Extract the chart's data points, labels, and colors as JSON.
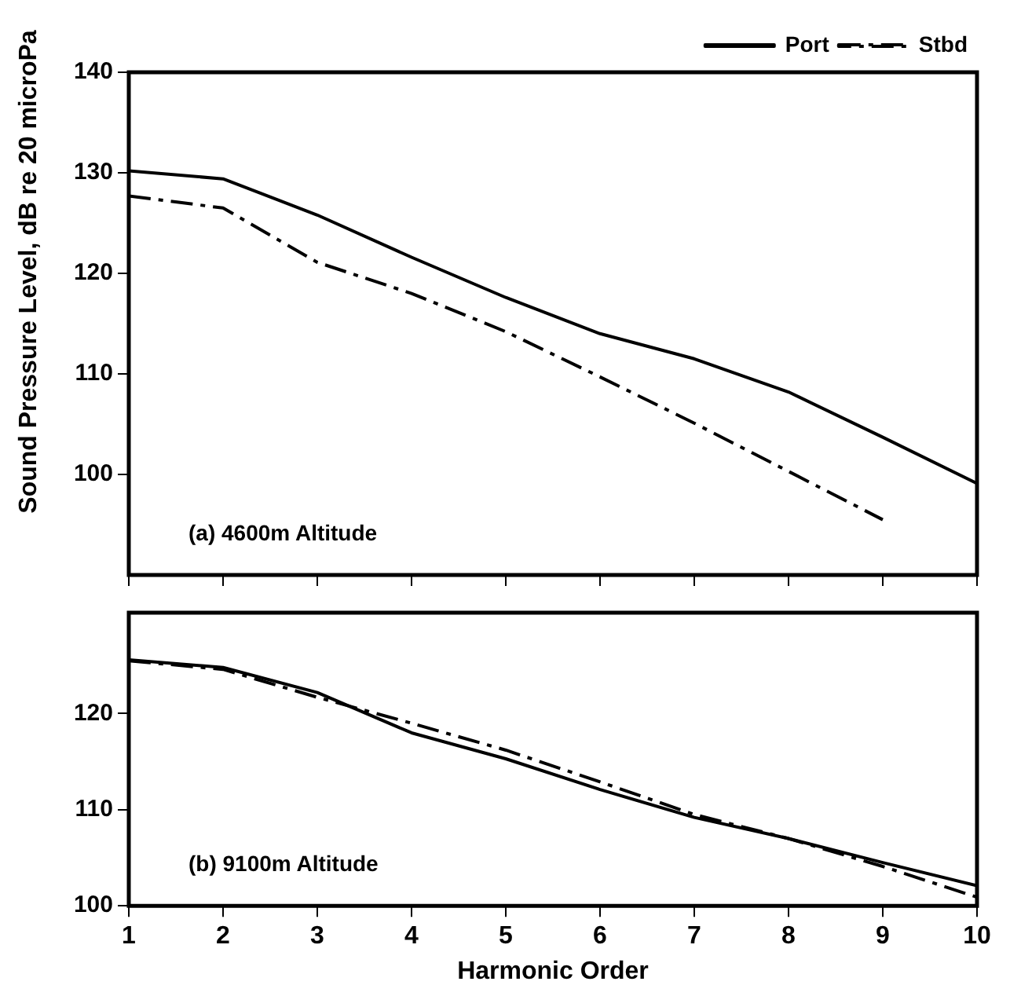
{
  "chart_data": [
    {
      "type": "line",
      "ylabel": "Sound Pressure Level, dB re 20 microPa",
      "annotations": [
        "(a) 4600m Altitude"
      ],
      "x": [
        1,
        2,
        3,
        4,
        5,
        6,
        7,
        8,
        9,
        10
      ],
      "xlim": [
        1,
        10
      ],
      "xticks": [
        1,
        2,
        3,
        4,
        5,
        6,
        7,
        8,
        9,
        10
      ],
      "ylim": [
        90,
        140
      ],
      "yticks": [
        100,
        110,
        120,
        130,
        140
      ],
      "tick_labels": "y",
      "legend": "top right",
      "marker": "none",
      "series": [
        {
          "name": "Port",
          "color": "#000000",
          "line_style": "solid",
          "values": [
            130.2,
            129.4,
            125.8,
            121.6,
            117.6,
            114,
            111.5,
            108.2,
            103.7,
            99.1
          ]
        },
        {
          "name": "Stbd",
          "color": "#000000",
          "line_style": "dashed",
          "values": [
            127.7,
            126.5,
            121.1,
            118,
            114.2,
            109.7,
            105.1,
            100.3,
            95.5,
            null
          ]
        }
      ]
    },
    {
      "type": "line",
      "xlabel": "Harmonic Order",
      "annotations": [
        "(b) 9100m Altitude"
      ],
      "x": [
        1,
        2,
        3,
        4,
        5,
        6,
        7,
        8,
        9,
        10
      ],
      "xlim": [
        1,
        10
      ],
      "xticks": [
        1,
        2,
        3,
        4,
        5,
        6,
        7,
        8,
        9,
        10
      ],
      "ylim": [
        100,
        130.5
      ],
      "yticks": [
        100,
        110,
        120
      ],
      "marker": "none",
      "series": [
        {
          "color": "#000000",
          "line_style": "solid",
          "values": [
            125.6,
            124.8,
            122.2,
            118,
            115.3,
            112.1,
            109.2,
            107,
            104.5,
            102.1
          ]
        },
        {
          "color": "#000000",
          "line_style": "dashed",
          "values": [
            125.5,
            124.6,
            121.7,
            119,
            116.2,
            112.9,
            109.5,
            107,
            104.1,
            100.9
          ]
        }
      ]
    }
  ]
}
